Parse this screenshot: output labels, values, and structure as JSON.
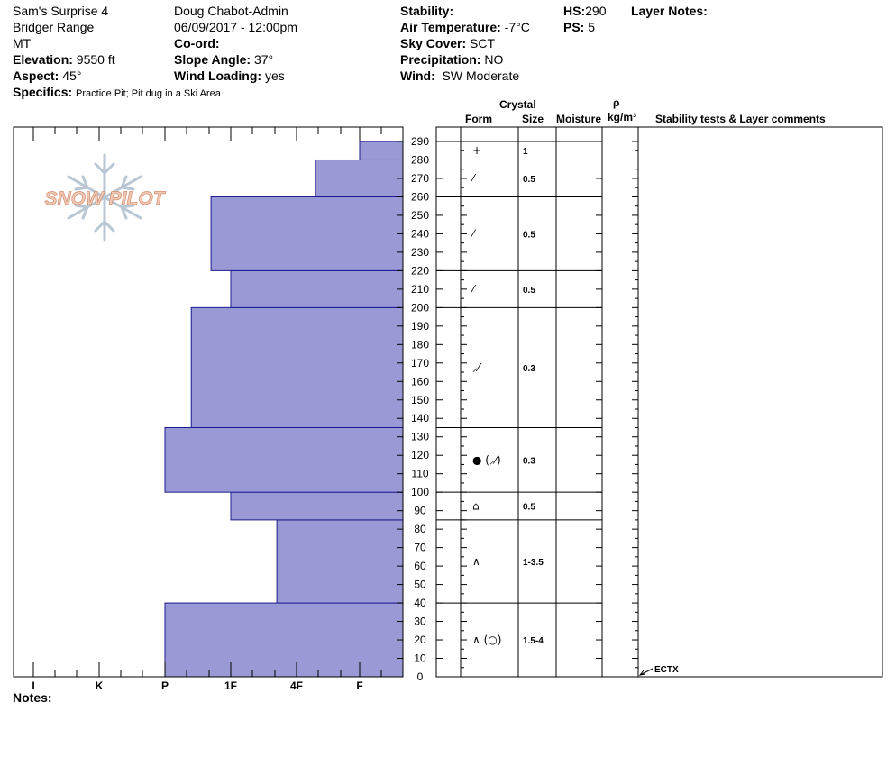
{
  "header": {
    "location": "Sam's Surprise 4",
    "range": "Bridger Range",
    "state": "MT",
    "elevation_label": "Elevation:",
    "elevation": "9550 ft",
    "aspect_label": "Aspect:",
    "aspect": "45°",
    "specifics_label": "Specifics:",
    "specifics": "Practice Pit; Pit dug in a Ski Area",
    "observer": "Doug Chabot-Admin",
    "datetime": "06/09/2017 - 12:00pm",
    "coord_label": "Co-ord:",
    "slope_label": "Slope Angle:",
    "slope": "37°",
    "wind_loading_label": "Wind Loading:",
    "wind_loading": "yes",
    "stability_label": "Stability:",
    "air_temp_label": "Air Temperature:",
    "air_temp": "-7°C",
    "sky_label": "Sky Cover:",
    "sky": "SCT",
    "precip_label": "Precipitation:",
    "precip": "NO",
    "wind_label": "Wind:",
    "wind": "SW Moderate",
    "hs_label": "HS:",
    "hs": "290",
    "ps_label": "PS:",
    "ps": "5",
    "layer_notes_label": "Layer Notes:",
    "notes_label": "Notes:"
  },
  "logo_text": "SNOW PILOT",
  "columns": {
    "crystal": "Crystal",
    "form": "Form",
    "size": "Size",
    "moisture": "Moisture",
    "rho": "ρ",
    "density_unit": "kg/m³",
    "stability_comments": "Stability tests & Layer comments"
  },
  "colors": {
    "layer_fill": "#9999d6",
    "layer_stroke": "#1a1a8c"
  },
  "chart_data": {
    "type": "bar",
    "orientation": "horizontal-step",
    "y_ticks": [
      "0",
      "10",
      "20",
      "30",
      "40",
      "50",
      "60",
      "70",
      "80",
      "90",
      "100",
      "110",
      "120",
      "130",
      "140",
      "150",
      "160",
      "170",
      "180",
      "190",
      "200",
      "210",
      "220",
      "230",
      "240",
      "250",
      "260",
      "270",
      "280",
      "290"
    ],
    "ylim": [
      0,
      290
    ],
    "x_ticks": [
      "I",
      "K",
      "P",
      "1F",
      "4F",
      "F"
    ],
    "x_axis_order": [
      "I",
      "K",
      "P",
      "1F",
      "4F",
      "F"
    ],
    "layers": [
      {
        "bottom": 0,
        "top": 40,
        "hardness": "P"
      },
      {
        "bottom": 40,
        "top": 85,
        "hardness": "4F-"
      },
      {
        "bottom": 85,
        "top": 100,
        "hardness": "1F"
      },
      {
        "bottom": 100,
        "top": 135,
        "hardness": "P"
      },
      {
        "bottom": 135,
        "top": 200,
        "hardness": "P+"
      },
      {
        "bottom": 200,
        "top": 220,
        "hardness": "1F"
      },
      {
        "bottom": 220,
        "top": 260,
        "hardness": "1F+"
      },
      {
        "bottom": 260,
        "top": 280,
        "hardness": "4F+"
      },
      {
        "bottom": 280,
        "top": 290,
        "hardness": "F"
      }
    ],
    "hardness_index": {
      "I": 6,
      "K": 5,
      "P": 4,
      "P+": 3.6,
      "1F": 3,
      "1F+": 3.3,
      "4F": 2,
      "4F-": 2.3,
      "4F+": 1.7,
      "F": 1
    },
    "crystal_rows": [
      {
        "bottom": 280,
        "top": 290,
        "form": "+",
        "size": "1"
      },
      {
        "bottom": 260,
        "top": 280,
        "form": "⁄",
        "size": "0.5"
      },
      {
        "bottom": 220,
        "top": 260,
        "form": "⁄",
        "size": "0.5"
      },
      {
        "bottom": 200,
        "top": 220,
        "form": "⁄",
        "size": "0.5"
      },
      {
        "bottom": 135,
        "top": 200,
        "form": "⸝⁄",
        "size": "0.3"
      },
      {
        "bottom": 100,
        "top": 135,
        "form": "● (⸝⁄)",
        "size": "0.3"
      },
      {
        "bottom": 85,
        "top": 100,
        "form": "⌂",
        "size": "0.5"
      },
      {
        "bottom": 40,
        "top": 85,
        "form": "∧",
        "size": "1-3.5"
      },
      {
        "bottom": 0,
        "top": 40,
        "form": "∧ (○)",
        "size": "1.5-4"
      }
    ],
    "stability_tests": [
      {
        "height": 0,
        "label": "ECTX"
      }
    ]
  }
}
